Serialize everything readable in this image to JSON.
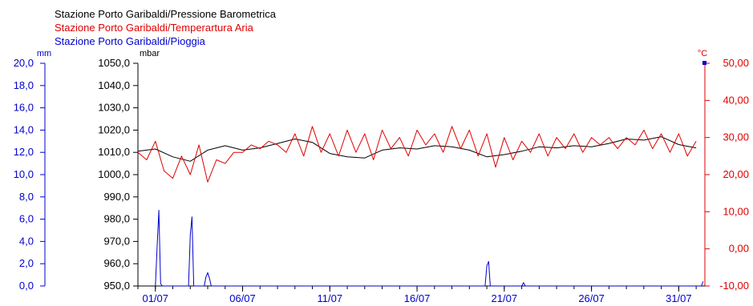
{
  "chart_data": {
    "type": "line",
    "legend": [
      {
        "label": "Stazione Porto Garibaldi/Pressione Barometrica",
        "color": "#000000"
      },
      {
        "label": "Stazione Porto Garibaldi/Temperartura Aria",
        "color": "#e00000"
      },
      {
        "label": "Stazione Porto Garibaldi/Pioggia",
        "color": "#0000cc"
      }
    ],
    "axes": {
      "rain": {
        "unit": "mm",
        "range": [
          0,
          20
        ],
        "ticks": [
          "0,0",
          "2,0",
          "4,0",
          "6,0",
          "8,0",
          "10,0",
          "12,0",
          "14,0",
          "16,0",
          "18,0",
          "20,0"
        ],
        "color": "#0000cc"
      },
      "pressure": {
        "unit": "mbar",
        "range": [
          950,
          1050
        ],
        "ticks": [
          "950,0",
          "960,0",
          "970,0",
          "980,0",
          "990,0",
          "1000,0",
          "1010,0",
          "1020,0",
          "1030,0",
          "1040,0",
          "1050,0"
        ],
        "color": "#000000"
      },
      "temperature": {
        "unit": "°C",
        "range": [
          -10,
          50
        ],
        "ticks": [
          "-10,00",
          "0,00",
          "10,00",
          "20,00",
          "30,00",
          "40,00",
          "50,00"
        ],
        "color": "#e00000"
      },
      "x": {
        "ticks": [
          "01/07",
          "06/07",
          "11/07",
          "16/07",
          "21/07",
          "26/07",
          "31/07"
        ],
        "tick_days": [
          1,
          6,
          11,
          16,
          21,
          26,
          31
        ],
        "range_days": [
          0.0,
          32.5
        ],
        "color": "#0000cc"
      }
    },
    "series": [
      {
        "name": "Stazione Porto Garibaldi/Pressione Barometrica",
        "axis": "pressure",
        "color": "#000000",
        "x": [
          0,
          1,
          2,
          3,
          4,
          5,
          6,
          7,
          8,
          9,
          10,
          11,
          12,
          13,
          14,
          15,
          16,
          17,
          18,
          19,
          20,
          21,
          22,
          23,
          24,
          25,
          26,
          27,
          28,
          29,
          30,
          31,
          32
        ],
        "y": [
          1010.5,
          1011.5,
          1008,
          1006,
          1011,
          1013,
          1011,
          1012,
          1014,
          1016,
          1014.5,
          1009.5,
          1008,
          1007.5,
          1011,
          1012,
          1011.5,
          1013,
          1012.5,
          1011,
          1008,
          1009,
          1010.5,
          1012.5,
          1012,
          1013,
          1012.5,
          1014,
          1016,
          1015.5,
          1017,
          1013.5,
          1012
        ]
      },
      {
        "name": "Stazione Porto Garibaldi/Temperartura Aria",
        "axis": "temperature",
        "color": "#e00000",
        "x": [
          0,
          0.5,
          1,
          1.5,
          2,
          2.5,
          3,
          3.5,
          4,
          4.5,
          5,
          5.5,
          6,
          6.5,
          7,
          7.5,
          8,
          8.5,
          9,
          9.5,
          10,
          10.5,
          11,
          11.5,
          12,
          12.5,
          13,
          13.5,
          14,
          14.5,
          15,
          15.5,
          16,
          16.5,
          17,
          17.5,
          18,
          18.5,
          19,
          19.5,
          20,
          20.5,
          21,
          21.5,
          22,
          22.5,
          23,
          23.5,
          24,
          24.5,
          25,
          25.5,
          26,
          26.5,
          27,
          27.5,
          28,
          28.5,
          29,
          29.5,
          30,
          30.5,
          31,
          31.5,
          32
        ],
        "y": [
          26,
          24,
          29,
          21,
          19,
          25,
          20,
          28,
          18,
          24,
          23,
          26,
          26,
          28,
          27,
          29,
          28,
          26,
          31,
          25,
          33,
          26,
          31,
          25,
          32,
          26,
          31,
          24,
          32,
          27,
          30,
          25,
          32,
          28,
          31,
          26,
          33,
          27,
          32,
          25,
          31,
          22,
          30,
          24,
          29,
          26,
          31,
          25,
          30,
          27,
          31,
          26,
          30,
          28,
          30,
          27,
          30,
          28,
          32,
          27,
          31,
          26,
          31,
          25,
          29
        ]
      },
      {
        "name": "Stazione Porto Garibaldi/Pioggia",
        "axis": "rain",
        "color": "#0000cc",
        "x": [
          1.0,
          1.1,
          1.2,
          1.3,
          1.4,
          2.9,
          3.0,
          3.1,
          3.2,
          3.8,
          3.9,
          4.0,
          4.1,
          4.2,
          19.9,
          20.0,
          20.1,
          20.2,
          22.0,
          22.1,
          22.2,
          32.3,
          32.4
        ],
        "y": [
          0,
          3.5,
          6.8,
          0.2,
          0,
          0,
          4.6,
          6.2,
          0,
          0,
          0.8,
          1.2,
          0.7,
          0,
          0,
          1.8,
          2.2,
          0,
          0,
          0.3,
          0,
          0,
          0.4
        ]
      }
    ]
  }
}
